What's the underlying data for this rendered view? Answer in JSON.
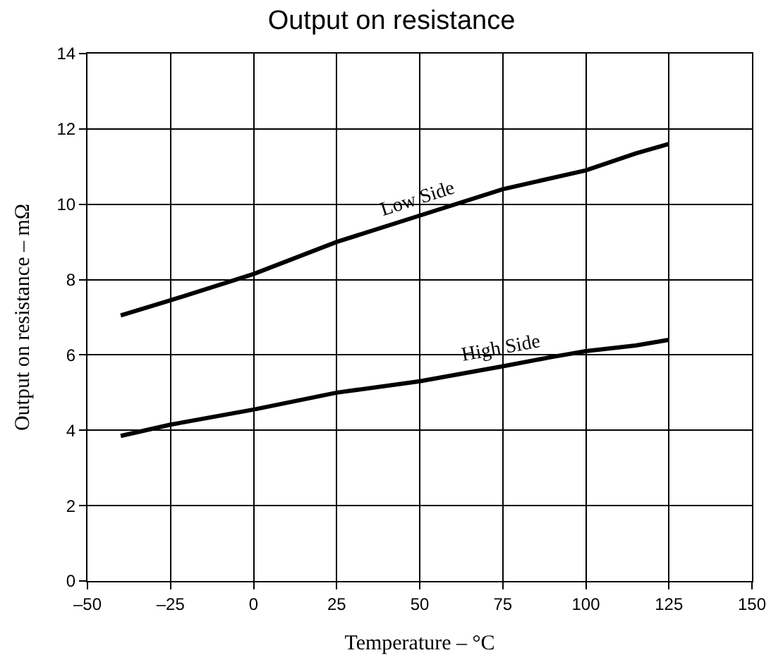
{
  "chart_data": {
    "type": "line",
    "title": "Output on resistance",
    "xlabel": "Temperature – °C",
    "ylabel": "Output on resistance – mΩ",
    "xlim": [
      -50,
      150
    ],
    "xticks": [
      {
        "value": -50,
        "label": "–50"
      },
      {
        "value": -25,
        "label": "–25"
      },
      0,
      25,
      50,
      75,
      100,
      125,
      150
    ],
    "ylim": [
      0,
      14
    ],
    "yticks": [
      0,
      2,
      4,
      6,
      8,
      10,
      12,
      14
    ],
    "grid": true,
    "legend": false,
    "marker": "none",
    "line_style": "solid",
    "series": [
      {
        "name": "Low Side",
        "color": "#000000",
        "x": [
          -40,
          -25,
          0,
          25,
          50,
          75,
          100,
          115,
          125
        ],
        "values": [
          7.05,
          7.45,
          8.15,
          9.0,
          9.7,
          10.4,
          10.9,
          11.35,
          11.6
        ]
      },
      {
        "name": "High Side",
        "color": "#000000",
        "x": [
          -40,
          -25,
          0,
          25,
          50,
          75,
          90,
          100,
          115,
          125
        ],
        "values": [
          3.85,
          4.15,
          4.55,
          5.0,
          5.3,
          5.7,
          5.95,
          6.1,
          6.25,
          6.4
        ]
      }
    ]
  }
}
